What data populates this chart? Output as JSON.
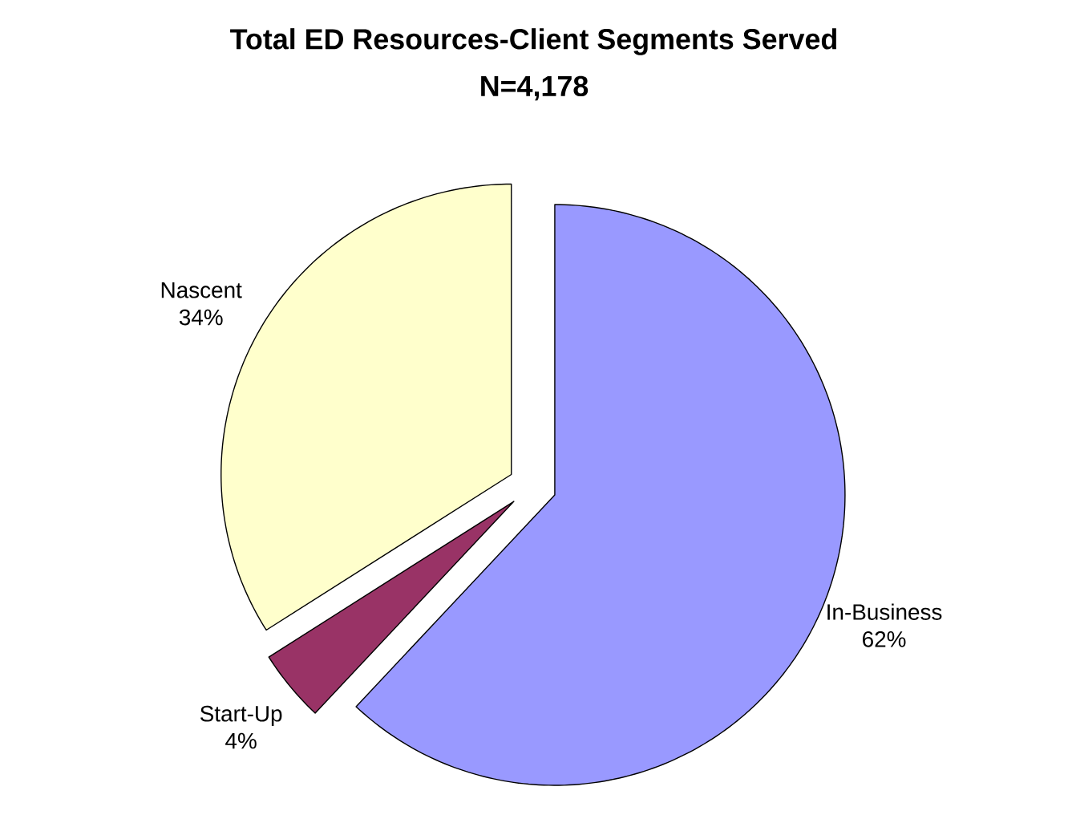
{
  "chart_data": {
    "type": "pie",
    "title": "Total ED Resources-Client Segments Served",
    "subtitle": "N=4,178",
    "categories": [
      "In-Business",
      "Start-Up",
      "Nascent"
    ],
    "values": [
      62,
      4,
      34
    ],
    "value_labels": [
      "62%",
      "4%",
      "34%"
    ],
    "colors": [
      "#9999ff",
      "#993366",
      "#ffffcc"
    ],
    "legend": false
  }
}
